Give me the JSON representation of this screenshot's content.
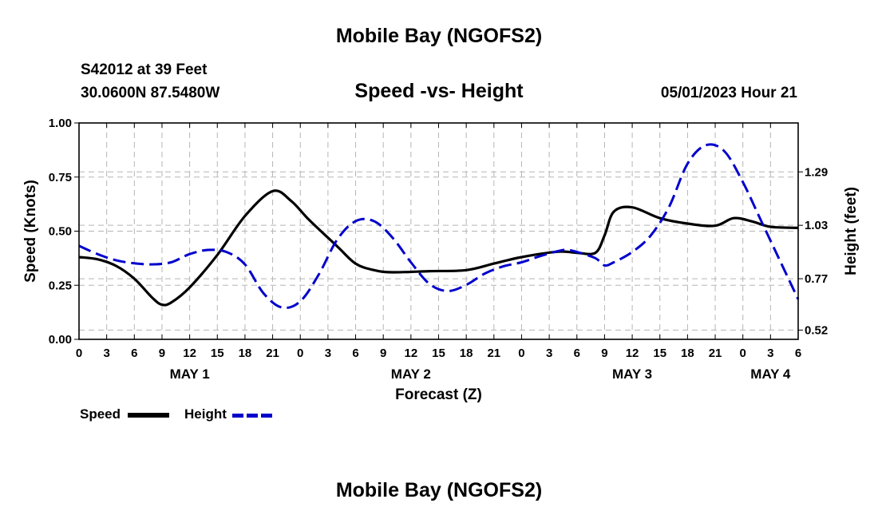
{
  "header": {
    "title": "Mobile Bay (NGOFS2)",
    "station": "S42012 at 39 Feet",
    "coords": "30.0600N  87.5480W",
    "subtitle": "Speed -vs- Height",
    "datetime": "05/01/2023 Hour 21",
    "footer_title": "Mobile Bay (NGOFS2)"
  },
  "chart_data": {
    "type": "line",
    "title": "Speed -vs- Height",
    "xlabel": "Forecast (Z)",
    "ylabel_left": "Speed (Knots)",
    "ylabel_right": "Height (feet)",
    "x_hours_range": [
      0,
      78
    ],
    "x_tick_labels": [
      "0",
      "3",
      "6",
      "9",
      "12",
      "15",
      "18",
      "21",
      "0",
      "3",
      "6",
      "9",
      "12",
      "15",
      "18",
      "21",
      "0",
      "3",
      "6",
      "9",
      "12",
      "15",
      "18",
      "21",
      "0",
      "3",
      "6"
    ],
    "day_labels": [
      {
        "label": "MAY 1",
        "hour": 12
      },
      {
        "label": "MAY 2",
        "hour": 36
      },
      {
        "label": "MAY 3",
        "hour": 60
      },
      {
        "label": "MAY 4",
        "hour": 75
      }
    ],
    "y_left_ticks": [
      "0.00",
      "0.25",
      "0.50",
      "0.75",
      "1.00"
    ],
    "y_left_range": [
      0,
      1
    ],
    "y_right_ticks": [
      {
        "label": "0.52",
        "value": 0.52
      },
      {
        "label": "0.77",
        "value": 0.77
      },
      {
        "label": "1.03",
        "value": 1.03
      },
      {
        "label": "1.29",
        "value": 1.29
      }
    ],
    "y_right_range": [
      0.475,
      1.528
    ],
    "series": [
      {
        "name": "Speed",
        "axis": "left",
        "color": "#000000",
        "style": "solid",
        "x": [
          0,
          2,
          4,
          6,
          8,
          9,
          10,
          12,
          15,
          18,
          21,
          23,
          25,
          28,
          30,
          32,
          34,
          38,
          42,
          45,
          48,
          52,
          54,
          56,
          57,
          58,
          60,
          63,
          66,
          69,
          71,
          73,
          75,
          78
        ],
        "y": [
          0.38,
          0.37,
          0.34,
          0.28,
          0.19,
          0.16,
          0.17,
          0.24,
          0.39,
          0.57,
          0.685,
          0.64,
          0.55,
          0.43,
          0.35,
          0.32,
          0.31,
          0.315,
          0.32,
          0.35,
          0.38,
          0.405,
          0.4,
          0.4,
          0.48,
          0.59,
          0.61,
          0.56,
          0.535,
          0.525,
          0.56,
          0.545,
          0.52,
          0.515
        ]
      },
      {
        "name": "Height",
        "axis": "right",
        "color": "#0000cc",
        "style": "dashed",
        "x": [
          0,
          2,
          4,
          6,
          8,
          10,
          12,
          14,
          16,
          18,
          20,
          22,
          24,
          26,
          28,
          30,
          32,
          34,
          36,
          38,
          40,
          42,
          44,
          46,
          48,
          50,
          52,
          53,
          54,
          56,
          57,
          58,
          60,
          62,
          64,
          66,
          68,
          70,
          72,
          74,
          76,
          78
        ],
        "y": [
          0.93,
          0.89,
          0.86,
          0.845,
          0.84,
          0.85,
          0.89,
          0.91,
          0.9,
          0.84,
          0.7,
          0.63,
          0.66,
          0.79,
          0.96,
          1.05,
          1.05,
          0.97,
          0.85,
          0.745,
          0.71,
          0.74,
          0.795,
          0.83,
          0.85,
          0.88,
          0.905,
          0.91,
          0.9,
          0.87,
          0.835,
          0.85,
          0.9,
          0.98,
          1.12,
          1.33,
          1.42,
          1.39,
          1.24,
          1.05,
          0.86,
          0.67
        ]
      }
    ],
    "legend": [
      {
        "label": "Speed",
        "color": "#000000",
        "style": "solid"
      },
      {
        "label": "Height",
        "color": "#0000cc",
        "style": "dashed"
      }
    ],
    "grid": true,
    "legend_position": "bottom-left"
  }
}
